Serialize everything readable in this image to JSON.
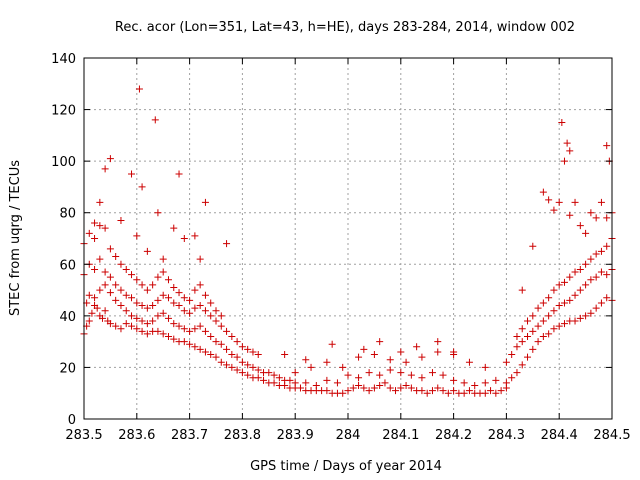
{
  "chart_data": {
    "type": "scatter",
    "title": "Rec. acor (Lon=351, Lat=43, h=HE), days 283-284, 2014, window 002",
    "xlabel": "GPS time / Days of year 2014",
    "ylabel": "STEC from uqrg / TECUs",
    "xlim": [
      283.5,
      284.5
    ],
    "ylim": [
      0,
      140
    ],
    "xticks": [
      "283.5",
      "283.6",
      "283.7",
      "283.8",
      "283.9",
      "284",
      "284.1",
      "284.2",
      "284.3",
      "284.4",
      "284.5"
    ],
    "yticks": [
      "0",
      "20",
      "40",
      "60",
      "80",
      "100",
      "120",
      "140"
    ],
    "grid": true,
    "legend": "none",
    "marker": "plus",
    "color": "#cc0000",
    "series": [
      {
        "x": [
          283.5,
          283.505,
          283.51,
          283.515,
          283.52,
          283.525,
          283.53,
          283.535,
          283.54,
          283.545,
          283.55,
          283.56,
          283.57,
          283.58,
          283.59,
          283.6,
          283.61,
          283.62,
          283.63,
          283.64,
          283.65,
          283.66,
          283.67,
          283.68,
          283.69,
          283.7,
          283.71,
          283.72,
          283.73,
          283.74,
          283.75,
          283.76,
          283.77,
          283.78,
          283.79,
          283.8,
          283.81,
          283.82,
          283.83,
          283.84,
          283.85,
          283.86,
          283.87,
          283.88,
          283.89,
          283.9,
          283.91,
          283.92,
          283.93,
          283.94,
          283.95,
          283.96,
          283.97,
          283.98,
          283.99
        ],
        "y": [
          33,
          36,
          38,
          41,
          44,
          43,
          40,
          39,
          42,
          38,
          37,
          36,
          35,
          37,
          36,
          35,
          34,
          33,
          34,
          34,
          33,
          32,
          31,
          30,
          30,
          29,
          28,
          27,
          26,
          25,
          24,
          22,
          21,
          20,
          19,
          18,
          17,
          16,
          16,
          15,
          14,
          14,
          13,
          13,
          12,
          12,
          12,
          11,
          11,
          11,
          11,
          11,
          10,
          10,
          10
        ]
      },
      {
        "x": [
          283.505,
          283.51,
          283.52,
          283.53,
          283.54,
          283.55,
          283.56,
          283.57,
          283.58,
          283.59,
          283.6,
          283.61,
          283.62,
          283.63,
          283.64,
          283.65,
          283.66,
          283.67,
          283.68,
          283.69,
          283.7,
          283.71,
          283.72,
          283.73,
          283.74,
          283.75,
          283.76,
          283.77,
          283.78,
          283.79,
          283.8,
          283.81,
          283.82,
          283.83,
          283.84,
          283.85,
          283.86,
          283.87,
          283.88,
          283.89,
          283.9
        ],
        "y": [
          45,
          48,
          47,
          50,
          52,
          49,
          46,
          44,
          42,
          40,
          39,
          38,
          37,
          38,
          40,
          41,
          39,
          37,
          36,
          35,
          34,
          35,
          36,
          34,
          32,
          30,
          29,
          27,
          25,
          24,
          22,
          21,
          20,
          19,
          18,
          18,
          17,
          16,
          15,
          15,
          14
        ]
      },
      {
        "x": [
          283.5,
          283.51,
          283.52,
          283.53,
          283.54,
          283.55,
          283.56,
          283.57,
          283.58,
          283.59,
          283.6,
          283.61,
          283.62,
          283.63,
          283.64,
          283.65,
          283.66,
          283.67,
          283.68,
          283.69,
          283.7,
          283.71,
          283.72,
          283.73,
          283.74,
          283.75,
          283.76,
          283.77,
          283.78,
          283.79,
          283.8,
          283.81,
          283.82,
          283.83
        ],
        "y": [
          56,
          60,
          58,
          62,
          57,
          55,
          52,
          50,
          48,
          47,
          45,
          44,
          43,
          44,
          46,
          48,
          47,
          45,
          44,
          42,
          41,
          43,
          44,
          42,
          40,
          38,
          36,
          34,
          32,
          30,
          28,
          27,
          26,
          25
        ]
      },
      {
        "x": [
          283.5,
          283.51,
          283.52,
          283.53,
          283.54,
          283.55,
          283.56,
          283.57,
          283.58,
          283.59,
          283.6,
          283.61,
          283.62,
          283.63,
          283.64,
          283.65,
          283.66,
          283.67,
          283.68,
          283.69,
          283.7,
          283.71,
          283.72,
          283.73,
          283.74,
          283.75,
          283.76
        ],
        "y": [
          68,
          72,
          70,
          75,
          74,
          66,
          63,
          60,
          58,
          56,
          54,
          52,
          50,
          52,
          55,
          57,
          54,
          51,
          49,
          47,
          46,
          50,
          52,
          48,
          45,
          42,
          40
        ]
      },
      {
        "x": [
          283.52,
          283.53,
          283.54,
          283.55,
          283.57,
          283.59,
          283.6,
          283.61,
          283.62,
          283.64,
          283.65,
          283.67,
          283.69,
          283.71,
          283.72,
          283.73,
          283.77
        ],
        "y": [
          76,
          84,
          97,
          101,
          77,
          95,
          71,
          90,
          65,
          80,
          62,
          74,
          70,
          71,
          62,
          84,
          68
        ]
      },
      {
        "x": [
          283.605,
          283.635,
          283.68
        ],
        "y": [
          128,
          116,
          95
        ]
      },
      {
        "x": [
          284.0,
          284.01,
          284.02,
          284.03,
          284.04,
          284.05,
          284.06,
          284.07,
          284.08,
          284.09,
          284.1,
          284.11,
          284.12,
          284.13,
          284.14,
          284.15,
          284.16,
          284.17,
          284.18,
          284.19,
          284.2,
          284.21,
          284.22,
          284.23,
          284.24,
          284.25,
          284.26,
          284.27,
          284.28,
          284.29,
          284.3
        ],
        "y": [
          11,
          12,
          13,
          12,
          11,
          12,
          13,
          14,
          12,
          11,
          12,
          13,
          12,
          11,
          11,
          10,
          11,
          12,
          11,
          10,
          11,
          10,
          10,
          11,
          10,
          10,
          10,
          11,
          10,
          11,
          12
        ]
      },
      {
        "x": [
          283.92,
          283.94,
          283.96,
          283.98,
          284.0,
          284.02,
          284.04,
          284.06,
          284.08,
          284.1,
          284.12,
          284.14,
          284.16,
          284.18,
          284.2,
          284.22,
          284.24,
          284.26,
          284.28
        ],
        "y": [
          14,
          13,
          15,
          14,
          17,
          16,
          18,
          17,
          19,
          18,
          17,
          16,
          18,
          17,
          15,
          14,
          13,
          14,
          15
        ]
      },
      {
        "x": [
          283.9,
          283.93,
          283.96,
          283.99,
          284.02,
          284.05,
          284.08,
          284.11,
          284.14,
          284.17,
          284.2,
          284.23,
          284.26
        ],
        "y": [
          18,
          20,
          22,
          20,
          24,
          25,
          23,
          22,
          24,
          26,
          25,
          22,
          20
        ]
      },
      {
        "x": [
          283.88,
          283.92,
          283.97,
          284.03,
          284.06,
          284.1,
          284.13,
          284.17,
          284.2
        ],
        "y": [
          25,
          23,
          29,
          27,
          30,
          26,
          28,
          30,
          26
        ]
      },
      {
        "x": [
          284.3,
          284.31,
          284.32,
          284.33,
          284.34,
          284.35,
          284.36,
          284.37,
          284.38,
          284.39,
          284.4,
          284.41,
          284.42,
          284.43,
          284.44,
          284.45,
          284.46,
          284.47,
          284.48,
          284.49,
          284.5
        ],
        "y": [
          14,
          16,
          18,
          21,
          24,
          27,
          30,
          32,
          33,
          35,
          36,
          37,
          38,
          38,
          39,
          40,
          41,
          43,
          45,
          47,
          46
        ]
      },
      {
        "x": [
          284.3,
          284.31,
          284.32,
          284.33,
          284.34,
          284.35,
          284.36,
          284.37,
          284.38,
          284.39,
          284.4,
          284.41,
          284.42,
          284.43,
          284.44,
          284.45,
          284.46,
          284.47,
          284.48,
          284.49,
          284.5
        ],
        "y": [
          22,
          25,
          28,
          30,
          32,
          34,
          36,
          38,
          40,
          42,
          44,
          45,
          46,
          48,
          50,
          52,
          54,
          55,
          57,
          56,
          58
        ]
      },
      {
        "x": [
          284.32,
          284.33,
          284.34,
          284.35,
          284.36,
          284.37,
          284.38,
          284.39,
          284.4,
          284.41,
          284.42,
          284.43,
          284.44,
          284.45,
          284.46,
          284.47,
          284.48,
          284.49,
          284.5
        ],
        "y": [
          32,
          35,
          38,
          40,
          43,
          45,
          47,
          50,
          52,
          53,
          55,
          57,
          58,
          60,
          62,
          64,
          65,
          67,
          70
        ]
      },
      {
        "x": [
          284.33,
          284.35,
          284.37,
          284.38,
          284.39,
          284.4,
          284.41,
          284.42,
          284.43,
          284.44,
          284.45,
          284.46,
          284.47,
          284.48,
          284.49,
          284.5
        ],
        "y": [
          50,
          67,
          88,
          85,
          81,
          84,
          100,
          79,
          84,
          75,
          72,
          80,
          78,
          84,
          78,
          80
        ]
      },
      {
        "x": [
          284.405,
          284.415,
          284.42,
          284.49,
          284.495
        ],
        "y": [
          115,
          107,
          104,
          106,
          100
        ]
      }
    ]
  }
}
